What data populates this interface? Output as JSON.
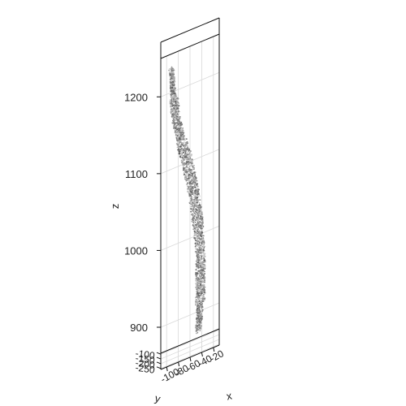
{
  "chart_data": {
    "type": "scatter",
    "projection": "3d",
    "title": "",
    "xlabel": "x",
    "ylabel": "y",
    "zlabel": "z",
    "grid": true,
    "legend": "none",
    "x_ticks": [
      "-100",
      "-80",
      "-60",
      "-40",
      "-20"
    ],
    "y_ticks": [
      "-100",
      "-150",
      "-200",
      "-250"
    ],
    "z_ticks": [
      "900",
      "1000",
      "1100",
      "1200"
    ],
    "xlim": [
      -110,
      -10
    ],
    "ylim": [
      -260,
      -90
    ],
    "zlim": [
      845,
      1250
    ],
    "surface_color": "#8a8a8a",
    "point_cloud_profile": [
      {
        "z": 1220,
        "x": -92,
        "y": -175
      },
      {
        "z": 1200,
        "x": -90,
        "y": -175
      },
      {
        "z": 1180,
        "x": -88,
        "y": -175
      },
      {
        "z": 1160,
        "x": -85,
        "y": -175
      },
      {
        "z": 1140,
        "x": -80,
        "y": -175
      },
      {
        "z": 1120,
        "x": -75,
        "y": -175
      },
      {
        "z": 1100,
        "x": -68,
        "y": -175
      },
      {
        "z": 1080,
        "x": -62,
        "y": -175
      },
      {
        "z": 1060,
        "x": -57,
        "y": -175
      },
      {
        "z": 1040,
        "x": -52,
        "y": -175
      },
      {
        "z": 1020,
        "x": -49,
        "y": -175
      },
      {
        "z": 1000,
        "x": -46,
        "y": -175
      },
      {
        "z": 980,
        "x": -44,
        "y": -175
      },
      {
        "z": 960,
        "x": -42,
        "y": -175
      },
      {
        "z": 940,
        "x": -42,
        "y": -175
      },
      {
        "z": 920,
        "x": -42,
        "y": -175
      },
      {
        "z": 900,
        "x": -43,
        "y": -175
      },
      {
        "z": 880,
        "x": -44,
        "y": -175
      },
      {
        "z": 865,
        "x": -46,
        "y": -175
      }
    ]
  }
}
